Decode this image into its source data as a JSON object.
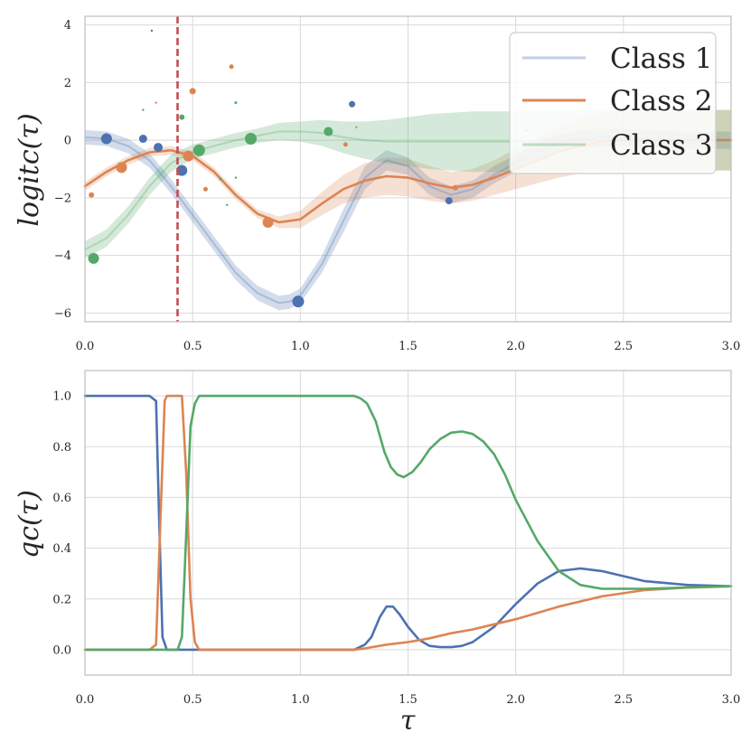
{
  "colors": {
    "class1": "#4c72b0",
    "class2": "#dd8452",
    "class3": "#55a868",
    "marker": "#c44e52"
  },
  "chart_data": [
    {
      "type": "line",
      "title": "",
      "xlabel": "",
      "ylabel": "logit_c(τ)",
      "ylabel_display": "logitc(τ)",
      "xlim": [
        0,
        3
      ],
      "ylim": [
        -6.3,
        4.3
      ],
      "xticks": [
        0.0,
        0.5,
        1.0,
        1.5,
        2.0,
        2.5,
        3.0
      ],
      "xtick_labels": [
        "0.0",
        "0.5",
        "1.0",
        "1.5",
        "2.0",
        "2.5",
        "3.0"
      ],
      "yticks": [
        4,
        2,
        0,
        -2,
        -4,
        -6
      ],
      "ytick_labels": [
        "4",
        "2",
        "0",
        "−2",
        "−4",
        "−6"
      ],
      "vline_x": 0.43,
      "legend": {
        "position": "top-right",
        "entries": [
          "Class 1",
          "Class 2",
          "Class 3"
        ]
      },
      "series": [
        {
          "name": "Class 1",
          "x": [
            0,
            0.1,
            0.2,
            0.3,
            0.4,
            0.5,
            0.6,
            0.7,
            0.8,
            0.9,
            0.95,
            1.0,
            1.1,
            1.2,
            1.3,
            1.4,
            1.5,
            1.6,
            1.7,
            1.8,
            1.9,
            2.0,
            2.1,
            2.2,
            2.3,
            2.4,
            2.5,
            2.6,
            2.7,
            2.8,
            2.9,
            3.0
          ],
          "y": [
            0.1,
            0.05,
            -0.2,
            -0.7,
            -1.6,
            -2.6,
            -3.6,
            -4.6,
            -5.3,
            -5.65,
            -5.6,
            -5.4,
            -4.3,
            -2.8,
            -1.3,
            -0.7,
            -0.9,
            -1.6,
            -1.9,
            -1.7,
            -1.2,
            -0.8,
            -0.4,
            -0.1,
            0.05,
            0.1,
            0.1,
            0.05,
            0.02,
            0.0,
            0.0,
            0.0
          ],
          "band": [
            0.25,
            0.25,
            0.25,
            0.25,
            0.25,
            0.25,
            0.25,
            0.25,
            0.25,
            0.25,
            0.25,
            0.25,
            0.3,
            0.4,
            0.4,
            0.35,
            0.3,
            0.3,
            0.3,
            0.3,
            0.3,
            0.3,
            0.3,
            0.3,
            0.3,
            0.3,
            0.3,
            0.3,
            0.3,
            0.3,
            0.3,
            0.3
          ]
        },
        {
          "name": "Class 2",
          "x": [
            0,
            0.1,
            0.2,
            0.3,
            0.4,
            0.5,
            0.6,
            0.7,
            0.8,
            0.9,
            1.0,
            1.1,
            1.2,
            1.3,
            1.4,
            1.5,
            1.6,
            1.7,
            1.8,
            1.9,
            2.0,
            2.1,
            2.2,
            2.3,
            2.4,
            2.5,
            2.6,
            2.7,
            2.8,
            2.9,
            3.0
          ],
          "y": [
            -1.6,
            -1.1,
            -0.7,
            -0.42,
            -0.35,
            -0.55,
            -1.1,
            -1.9,
            -2.55,
            -2.85,
            -2.75,
            -2.2,
            -1.7,
            -1.4,
            -1.25,
            -1.3,
            -1.5,
            -1.65,
            -1.55,
            -1.3,
            -1.0,
            -0.7,
            -0.4,
            -0.2,
            -0.05,
            0.0,
            0.0,
            0.0,
            0.0,
            0.0,
            0.0
          ],
          "band": [
            0.15,
            0.15,
            0.15,
            0.15,
            0.15,
            0.15,
            0.15,
            0.15,
            0.15,
            0.2,
            0.3,
            0.4,
            0.5,
            0.6,
            0.65,
            0.65,
            0.6,
            0.55,
            0.55,
            0.6,
            0.7,
            0.8,
            0.9,
            0.95,
            1.0,
            1.05,
            1.05,
            1.05,
            1.05,
            1.05,
            1.05
          ]
        },
        {
          "name": "Class 3",
          "x": [
            0,
            0.1,
            0.2,
            0.3,
            0.4,
            0.5,
            0.6,
            0.7,
            0.8,
            0.9,
            1.0,
            1.1,
            1.2,
            1.3,
            1.4,
            1.5,
            1.6,
            1.7,
            1.8,
            1.9,
            2.0,
            2.1,
            2.2,
            2.3,
            2.4,
            2.5,
            2.6,
            2.7,
            2.8,
            2.9,
            3.0
          ],
          "y": [
            -3.8,
            -3.4,
            -2.6,
            -1.6,
            -0.8,
            -0.4,
            -0.2,
            0.0,
            0.15,
            0.3,
            0.3,
            0.25,
            0.1,
            0.0,
            -0.05,
            -0.05,
            -0.05,
            -0.05,
            -0.05,
            -0.05,
            -0.05,
            -0.03,
            -0.02,
            0.0,
            0.0,
            0.0,
            0.0,
            0.0,
            0.0,
            0.0,
            0.0
          ],
          "band": [
            0.3,
            0.3,
            0.3,
            0.3,
            0.3,
            0.25,
            0.25,
            0.25,
            0.25,
            0.3,
            0.35,
            0.45,
            0.55,
            0.65,
            0.75,
            0.85,
            0.95,
            1.0,
            1.05,
            1.05,
            1.05,
            1.05,
            1.05,
            1.05,
            1.05,
            1.05,
            1.05,
            1.05,
            1.05,
            1.05,
            1.05
          ]
        }
      ],
      "points": [
        {
          "series": "Class 1",
          "x": 0.1,
          "y": 0.05,
          "r": 6
        },
        {
          "series": "Class 1",
          "x": 0.27,
          "y": 0.05,
          "r": 4.5
        },
        {
          "series": "Class 1",
          "x": 0.34,
          "y": -0.25,
          "r": 5
        },
        {
          "series": "Class 1",
          "x": 0.45,
          "y": -1.05,
          "r": 6
        },
        {
          "series": "Class 1",
          "x": 0.99,
          "y": -5.6,
          "r": 6.5
        },
        {
          "series": "Class 1",
          "x": 1.24,
          "y": 1.25,
          "r": 3.5
        },
        {
          "series": "Class 1",
          "x": 1.69,
          "y": -2.1,
          "r": 4
        },
        {
          "series": "Class 1",
          "x": 0.31,
          "y": 3.8,
          "r": 1.2
        },
        {
          "series": "Class 2",
          "x": 0.03,
          "y": -1.9,
          "r": 3
        },
        {
          "series": "Class 2",
          "x": 0.17,
          "y": -0.95,
          "r": 6
        },
        {
          "series": "Class 2",
          "x": 0.33,
          "y": 1.3,
          "r": 1.2
        },
        {
          "series": "Class 2",
          "x": 0.48,
          "y": -0.55,
          "r": 6
        },
        {
          "series": "Class 2",
          "x": 0.5,
          "y": 1.7,
          "r": 3.5
        },
        {
          "series": "Class 2",
          "x": 0.56,
          "y": -1.7,
          "r": 2.5
        },
        {
          "series": "Class 2",
          "x": 0.68,
          "y": 2.55,
          "r": 2.5
        },
        {
          "series": "Class 2",
          "x": 0.85,
          "y": -2.85,
          "r": 6
        },
        {
          "series": "Class 2",
          "x": 1.21,
          "y": -0.15,
          "r": 2.5
        },
        {
          "series": "Class 2",
          "x": 1.26,
          "y": 0.45,
          "r": 1.2
        },
        {
          "series": "Class 2",
          "x": 1.72,
          "y": -1.65,
          "r": 3
        },
        {
          "series": "Class 3",
          "x": 0.04,
          "y": -4.1,
          "r": 6
        },
        {
          "series": "Class 3",
          "x": 0.27,
          "y": 1.05,
          "r": 1.2
        },
        {
          "series": "Class 3",
          "x": 0.45,
          "y": 0.8,
          "r": 3
        },
        {
          "series": "Class 3",
          "x": 0.53,
          "y": -0.35,
          "r": 6.5
        },
        {
          "series": "Class 3",
          "x": 0.63,
          "y": -1.35,
          "r": 1.5
        },
        {
          "series": "Class 3",
          "x": 0.66,
          "y": -2.25,
          "r": 1.2
        },
        {
          "series": "Class 3",
          "x": 0.7,
          "y": 1.3,
          "r": 1.5
        },
        {
          "series": "Class 3",
          "x": 0.7,
          "y": -1.3,
          "r": 1.2
        },
        {
          "series": "Class 3",
          "x": 0.77,
          "y": 0.05,
          "r": 6.5
        },
        {
          "series": "Class 3",
          "x": 1.13,
          "y": 0.3,
          "r": 5
        },
        {
          "series": "Class 3",
          "x": 2.05,
          "y": 0.35,
          "r": 1.2
        }
      ]
    },
    {
      "type": "line",
      "title": "",
      "xlabel": "τ",
      "ylabel": "q_c(τ)",
      "ylabel_display": "qc(τ)",
      "xlim": [
        0,
        3
      ],
      "ylim": [
        -0.1,
        1.1
      ],
      "xticks": [
        0.0,
        0.5,
        1.0,
        1.5,
        2.0,
        2.5,
        3.0
      ],
      "xtick_labels": [
        "0.0",
        "0.5",
        "1.0",
        "1.5",
        "2.0",
        "2.5",
        "3.0"
      ],
      "yticks": [
        1.0,
        0.8,
        0.6,
        0.4,
        0.2,
        0.0
      ],
      "ytick_labels": [
        "1.0",
        "0.8",
        "0.6",
        "0.4",
        "0.2",
        "0.0"
      ],
      "series": [
        {
          "name": "Class 1",
          "x": [
            0,
            0.3,
            0.33,
            0.345,
            0.36,
            0.38,
            0.5,
            1.0,
            1.25,
            1.3,
            1.33,
            1.37,
            1.4,
            1.43,
            1.46,
            1.5,
            1.55,
            1.6,
            1.65,
            1.7,
            1.75,
            1.8,
            1.9,
            2.0,
            2.1,
            2.2,
            2.3,
            2.4,
            2.5,
            2.6,
            2.8,
            3.0
          ],
          "y": [
            1.0,
            1.0,
            0.98,
            0.5,
            0.05,
            0.0,
            0.0,
            0.0,
            0.0,
            0.02,
            0.05,
            0.13,
            0.17,
            0.17,
            0.14,
            0.09,
            0.04,
            0.015,
            0.01,
            0.01,
            0.015,
            0.03,
            0.09,
            0.18,
            0.26,
            0.31,
            0.32,
            0.31,
            0.29,
            0.27,
            0.255,
            0.25
          ]
        },
        {
          "name": "Class 2",
          "x": [
            0,
            0.3,
            0.33,
            0.35,
            0.37,
            0.38,
            0.45,
            0.47,
            0.49,
            0.51,
            0.53,
            1.0,
            1.25,
            1.3,
            1.4,
            1.5,
            1.6,
            1.7,
            1.8,
            1.9,
            2.0,
            2.2,
            2.4,
            2.6,
            2.8,
            3.0
          ],
          "y": [
            0.0,
            0.0,
            0.02,
            0.5,
            0.98,
            1.0,
            1.0,
            0.7,
            0.2,
            0.03,
            0.0,
            0.0,
            0.0,
            0.005,
            0.02,
            0.03,
            0.045,
            0.065,
            0.08,
            0.1,
            0.12,
            0.17,
            0.21,
            0.235,
            0.245,
            0.25
          ]
        },
        {
          "name": "Class 3",
          "x": [
            0,
            0.43,
            0.45,
            0.47,
            0.49,
            0.51,
            0.53,
            1.0,
            1.25,
            1.28,
            1.31,
            1.35,
            1.39,
            1.42,
            1.45,
            1.48,
            1.52,
            1.56,
            1.6,
            1.65,
            1.7,
            1.75,
            1.8,
            1.85,
            1.9,
            1.95,
            2.0,
            2.1,
            2.2,
            2.3,
            2.4,
            2.6,
            2.8,
            3.0
          ],
          "y": [
            0.0,
            0.0,
            0.05,
            0.45,
            0.88,
            0.97,
            1.0,
            1.0,
            1.0,
            0.99,
            0.97,
            0.9,
            0.78,
            0.72,
            0.69,
            0.68,
            0.7,
            0.74,
            0.79,
            0.83,
            0.855,
            0.86,
            0.85,
            0.82,
            0.77,
            0.69,
            0.59,
            0.43,
            0.31,
            0.255,
            0.24,
            0.24,
            0.245,
            0.25
          ]
        }
      ]
    }
  ]
}
